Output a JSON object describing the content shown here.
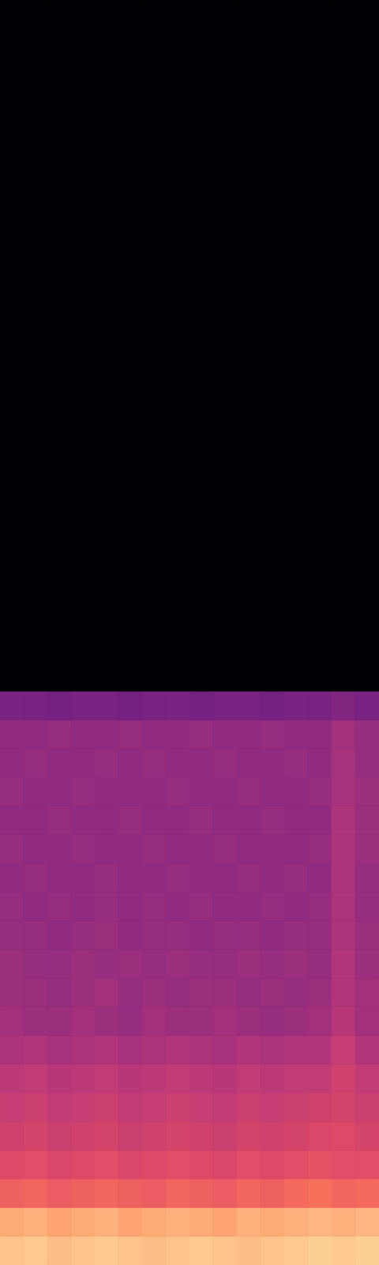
{
  "chart_data": {
    "type": "heatmap",
    "tick_labels": false,
    "xlim": [
      0,
      16
    ],
    "ylim": [
      0,
      11.025
    ],
    "x_bins": [
      0,
      1,
      2,
      3,
      4,
      5,
      6,
      7,
      8,
      9,
      10,
      11,
      12,
      13,
      14,
      15,
      16
    ],
    "y_bins": [
      0,
      0.25,
      0.5,
      0.75,
      1.0,
      1.25,
      1.5,
      1.75,
      2.0,
      2.25,
      2.5,
      2.75,
      3.0,
      3.25,
      3.5,
      3.75,
      4.0,
      4.25,
      4.5,
      4.75,
      5.0,
      11.025
    ],
    "color_range": [
      -80,
      0
    ],
    "cells": [
      [
        -10,
        -9,
        -11,
        -10,
        -9,
        -10,
        -11,
        -10,
        -9,
        -10,
        -11,
        -10,
        -9,
        -8,
        -9,
        -8
      ],
      [
        -14,
        -13,
        -15,
        -14,
        -13,
        -15,
        -14,
        -13,
        -14,
        -15,
        -13,
        -14,
        -13,
        -12,
        -13,
        -12
      ],
      [
        -27,
        -26,
        -28,
        -27,
        -26,
        -27,
        -28,
        -26,
        -27,
        -28,
        -26,
        -27,
        -25,
        -24,
        -26,
        -25
      ],
      [
        -32,
        -31,
        -33,
        -32,
        -31,
        -33,
        -32,
        -31,
        -32,
        -33,
        -31,
        -32,
        -31,
        -30,
        -31,
        -31
      ],
      [
        -35,
        -34,
        -36,
        -35,
        -34,
        -36,
        -35,
        -34,
        -35,
        -36,
        -34,
        -35,
        -34,
        -33,
        -32,
        -34
      ],
      [
        -37,
        -36,
        -38,
        -37,
        -36,
        -38,
        -37,
        -36,
        -37,
        -38,
        -36,
        -37,
        -36,
        -35,
        -34,
        -36
      ],
      [
        -39,
        -38,
        -40,
        -39,
        -38,
        -40,
        -39,
        -38,
        -39,
        -40,
        -38,
        -39,
        -38,
        -38,
        -35,
        -38
      ],
      [
        -42,
        -41,
        -43,
        -42,
        -41,
        -43,
        -42,
        -41,
        -42,
        -43,
        -41,
        -42,
        -41,
        -41,
        -37,
        -41
      ],
      [
        -44,
        -45,
        -45,
        -44,
        -45,
        -46,
        -44,
        -45,
        -45,
        -44,
        -45,
        -46,
        -45,
        -44,
        -40,
        -44
      ],
      [
        -45,
        -45,
        -46,
        -45,
        -44,
        -46,
        -45,
        -46,
        -45,
        -45,
        -46,
        -45,
        -46,
        -45,
        -41,
        -44
      ],
      [
        -45,
        -46,
        -46,
        -45,
        -46,
        -45,
        -46,
        -45,
        -46,
        -46,
        -45,
        -46,
        -45,
        -46,
        -41,
        -45
      ],
      [
        -46,
        -46,
        -47,
        -46,
        -45,
        -47,
        -46,
        -46,
        -47,
        -46,
        -46,
        -47,
        -46,
        -46,
        -42,
        -45
      ],
      [
        -46,
        -47,
        -46,
        -47,
        -46,
        -47,
        -46,
        -47,
        -46,
        -47,
        -47,
        -46,
        -47,
        -46,
        -42,
        -46
      ],
      [
        -47,
        -46,
        -47,
        -47,
        -46,
        -47,
        -47,
        -46,
        -47,
        -47,
        -46,
        -47,
        -46,
        -47,
        -42,
        -46
      ],
      [
        -46,
        -47,
        -47,
        -46,
        -47,
        -47,
        -46,
        -47,
        -47,
        -46,
        -47,
        -47,
        -47,
        -46,
        -42,
        -45
      ],
      [
        -47,
        -47,
        -46,
        -47,
        -47,
        -46,
        -47,
        -47,
        -46,
        -47,
        -47,
        -46,
        -47,
        -47,
        -42,
        -45
      ],
      [
        -46,
        -47,
        -47,
        -46,
        -47,
        -47,
        -47,
        -46,
        -47,
        -47,
        -46,
        -47,
        -47,
        -46,
        -43,
        -45
      ],
      [
        -47,
        -46,
        -47,
        -47,
        -46,
        -47,
        -46,
        -47,
        -47,
        -46,
        -47,
        -47,
        -46,
        -47,
        -43,
        -46
      ],
      [
        -47,
        -47,
        -46,
        -47,
        -47,
        -46,
        -47,
        -47,
        -46,
        -47,
        -47,
        -46,
        -47,
        -47,
        -44,
        -46
      ],
      [
        -52,
        -52,
        -53,
        -52,
        -52,
        -53,
        -52,
        -52,
        -53,
        -52,
        -52,
        -53,
        -52,
        -52,
        -50,
        -52
      ],
      [
        -80,
        -80,
        -80,
        -80,
        -80,
        -80,
        -80,
        -80,
        -80,
        -80,
        -80,
        -80,
        -80,
        -80,
        -80,
        -80
      ]
    ]
  }
}
